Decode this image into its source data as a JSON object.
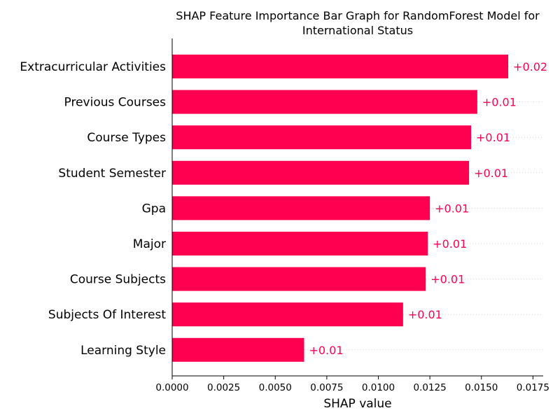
{
  "chart_data": {
    "type": "bar",
    "orientation": "horizontal",
    "title": "SHAP Feature Importance Bar Graph for RandomForest Model for International Status",
    "title_lines": [
      "SHAP Feature Importance Bar Graph for RandomForest Model for",
      "International Status"
    ],
    "xlabel": "SHAP value",
    "ylabel": "",
    "xlim": [
      0,
      0.018
    ],
    "xticks": [
      "0.0000",
      "0.0025",
      "0.0050",
      "0.0075",
      "0.0100",
      "0.0125",
      "0.0150",
      "0.0175"
    ],
    "xtick_values": [
      0,
      0.0025,
      0.005,
      0.0075,
      0.01,
      0.0125,
      0.015,
      0.0175
    ],
    "grid": false,
    "bar_color": "#ff0051",
    "categories": [
      "Extracurricular Activities",
      "Previous Courses",
      "Course Types",
      "Student Semester",
      "Gpa",
      "Major",
      "Course Subjects",
      "Subjects Of Interest",
      "Learning Style"
    ],
    "values": [
      0.0163,
      0.0148,
      0.0145,
      0.0144,
      0.0125,
      0.0124,
      0.0123,
      0.0112,
      0.0064
    ],
    "value_labels": [
      "+0.02",
      "+0.01",
      "+0.01",
      "+0.01",
      "+0.01",
      "+0.01",
      "+0.01",
      "+0.01",
      "+0.01"
    ]
  }
}
